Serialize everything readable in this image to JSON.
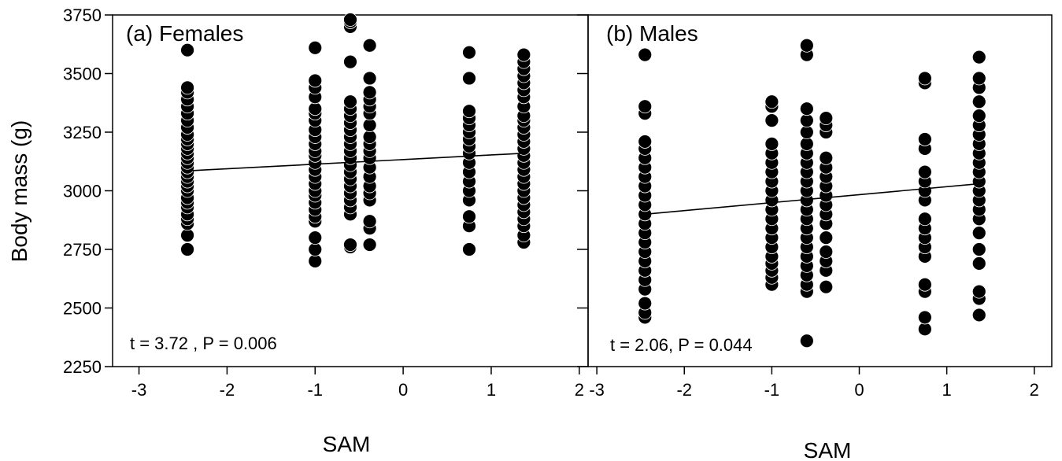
{
  "chart_data": [
    {
      "type": "scatter",
      "panel_label": "(a) Females",
      "annotation": "t = 3.72 , P = 0.006",
      "xlabel": "SAM",
      "ylabel": "Body mass (g)",
      "xlim": [
        -3.3,
        2.1
      ],
      "ylim": [
        2250,
        3750
      ],
      "x_ticks": [
        -3,
        -2,
        -1,
        0,
        1,
        2
      ],
      "y_ticks": [
        2250,
        2500,
        2750,
        3000,
        3250,
        3500,
        3750
      ],
      "trend_line": {
        "x": [
          -2.45,
          1.37
        ],
        "y": [
          3085,
          3160
        ]
      },
      "points": [
        {
          "x": -2.45,
          "y": [
            2750,
            2810,
            2860,
            2880,
            2900,
            2930,
            2950,
            2970,
            3000,
            3020,
            3040,
            3060,
            3080,
            3100,
            3120,
            3140,
            3160,
            3180,
            3200,
            3220,
            3240,
            3270,
            3300,
            3330,
            3360,
            3390,
            3420,
            3440,
            3600
          ]
        },
        {
          "x": -1.0,
          "y": [
            2700,
            2750,
            2800,
            2870,
            2890,
            2920,
            2950,
            2980,
            3000,
            3030,
            3060,
            3090,
            3120,
            3150,
            3170,
            3200,
            3230,
            3260,
            3300,
            3330,
            3350,
            3400,
            3440,
            3470,
            3610
          ]
        },
        {
          "x": -0.6,
          "y": [
            2760,
            2770,
            2900,
            2930,
            2960,
            2990,
            3020,
            3050,
            3080,
            3110,
            3140,
            3170,
            3200,
            3230,
            3260,
            3290,
            3320,
            3350,
            3380,
            3550,
            3700,
            3720,
            3730
          ]
        },
        {
          "x": -0.38,
          "y": [
            2770,
            2840,
            2870,
            2960,
            2990,
            3020,
            3060,
            3100,
            3140,
            3170,
            3200,
            3230,
            3280,
            3330,
            3360,
            3390,
            3420,
            3480,
            3620
          ]
        },
        {
          "x": 0.75,
          "y": [
            2750,
            2850,
            2890,
            2960,
            3000,
            3040,
            3080,
            3120,
            3160,
            3190,
            3220,
            3250,
            3280,
            3310,
            3340,
            3480,
            3590
          ]
        },
        {
          "x": 1.37,
          "y": [
            2780,
            2810,
            2850,
            2880,
            2910,
            2940,
            2970,
            3000,
            3030,
            3060,
            3090,
            3120,
            3150,
            3180,
            3210,
            3240,
            3270,
            3300,
            3320,
            3360,
            3400,
            3430,
            3460,
            3490,
            3520,
            3550,
            3580
          ]
        }
      ]
    },
    {
      "type": "scatter",
      "panel_label": "(b) Males",
      "annotation": "t = 2.06, P = 0.044",
      "xlabel": "SAM",
      "xlim": [
        -3.1,
        2.2
      ],
      "ylim": [
        2250,
        3750
      ],
      "x_ticks": [
        -3,
        -2,
        -1,
        0,
        1,
        2
      ],
      "trend_line": {
        "x": [
          -2.45,
          1.37
        ],
        "y": [
          2900,
          3030
        ]
      },
      "points": [
        {
          "x": -2.45,
          "y": [
            2460,
            2480,
            2520,
            2580,
            2620,
            2660,
            2700,
            2740,
            2780,
            2820,
            2860,
            2900,
            2940,
            2980,
            3020,
            3060,
            3100,
            3140,
            3180,
            3210,
            3330,
            3360,
            3580
          ]
        },
        {
          "x": -1.0,
          "y": [
            2600,
            2630,
            2660,
            2690,
            2720,
            2760,
            2800,
            2840,
            2880,
            2920,
            2960,
            3000,
            3040,
            3080,
            3120,
            3160,
            3200,
            3300,
            3360,
            3380
          ]
        },
        {
          "x": -0.6,
          "y": [
            2360,
            2570,
            2600,
            2640,
            2680,
            2720,
            2760,
            2800,
            2840,
            2880,
            2920,
            2960,
            3000,
            3040,
            3080,
            3120,
            3160,
            3200,
            3250,
            3300,
            3350,
            3580,
            3620
          ]
        },
        {
          "x": -0.38,
          "y": [
            2590,
            2660,
            2700,
            2740,
            2800,
            2860,
            2900,
            2940,
            2980,
            3020,
            3060,
            3100,
            3140,
            3250,
            3280,
            3310
          ]
        },
        {
          "x": 0.75,
          "y": [
            2410,
            2460,
            2570,
            2600,
            2720,
            2760,
            2800,
            2840,
            2880,
            2960,
            3000,
            3040,
            3080,
            3180,
            3220,
            3460,
            3480
          ]
        },
        {
          "x": 1.37,
          "y": [
            2470,
            2540,
            2570,
            2690,
            2750,
            2820,
            2880,
            2920,
            2960,
            3000,
            3040,
            3080,
            3120,
            3160,
            3200,
            3240,
            3280,
            3320,
            3380,
            3440,
            3480,
            3570
          ]
        }
      ]
    }
  ]
}
